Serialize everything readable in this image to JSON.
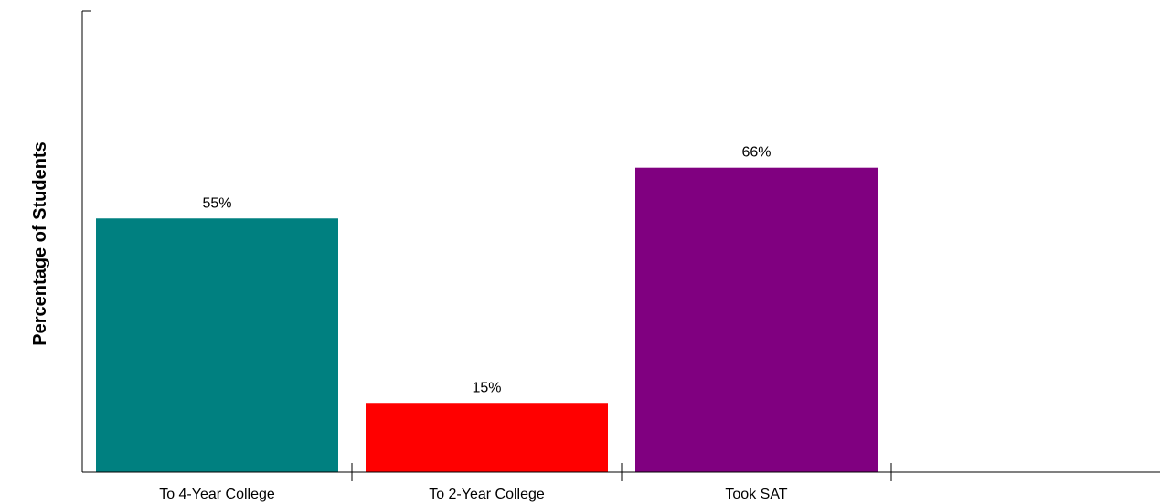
{
  "chart_data": {
    "type": "bar",
    "title": "",
    "xlabel": "",
    "ylabel": "Percentage of Students",
    "categories": [
      "To 4-Year College",
      "To 2-Year College",
      "Took SAT"
    ],
    "values": [
      55,
      15,
      66
    ],
    "data_labels": [
      "55%",
      "15%",
      "66%"
    ],
    "colors": [
      "#008080",
      "#ff0000",
      "#800080"
    ],
    "ylim": [
      0,
      100
    ],
    "grid": false,
    "legend": "none"
  }
}
